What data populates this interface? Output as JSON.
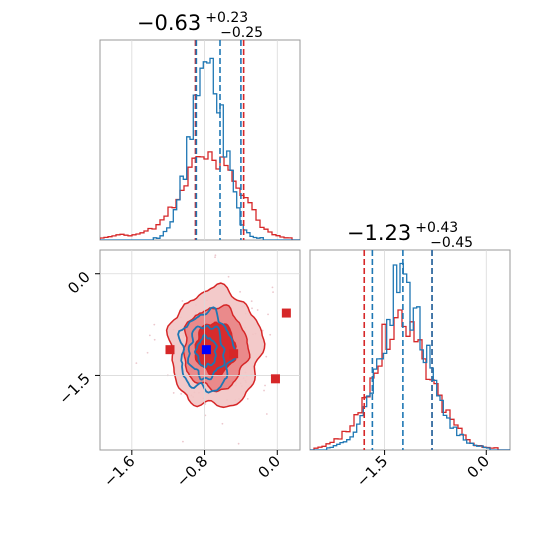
{
  "chart_data": {
    "type": "corner",
    "parameters": [
      {
        "title_value": "−0.63",
        "title_plus": "+0.23",
        "title_minus": "−0.25",
        "range": [
          -1.95,
          0.25
        ],
        "ticks": [
          -1.6,
          -0.8,
          0.0
        ],
        "tick_labels": [
          "−1.6",
          "−0.8",
          "0.0"
        ],
        "blue_hist": {
          "x": [
            -1.3,
            -1.2,
            -1.1,
            -1.0,
            -0.95,
            -0.9,
            -0.85,
            -0.8,
            -0.75,
            -0.7,
            -0.65,
            -0.6,
            -0.55,
            -0.5,
            -0.45,
            -0.4,
            -0.35,
            -0.3,
            -0.2
          ],
          "y": [
            0.01,
            0.05,
            0.15,
            0.4,
            0.62,
            0.78,
            0.88,
            0.93,
            0.86,
            0.78,
            0.7,
            0.6,
            0.46,
            0.32,
            0.2,
            0.1,
            0.05,
            0.02,
            0.01
          ]
        },
        "red_hist": {
          "x": [
            -1.9,
            -1.8,
            -1.7,
            -1.6,
            -1.5,
            -1.4,
            -1.3,
            -1.2,
            -1.1,
            -1.0,
            -0.9,
            -0.8,
            -0.7,
            -0.6,
            -0.5,
            -0.4,
            -0.3,
            -0.2,
            -0.1,
            0.0,
            0.1
          ],
          "y": [
            0.01,
            0.02,
            0.03,
            0.02,
            0.04,
            0.05,
            0.08,
            0.13,
            0.2,
            0.32,
            0.4,
            0.4,
            0.38,
            0.41,
            0.36,
            0.27,
            0.16,
            0.09,
            0.04,
            0.02,
            0.01
          ]
        },
        "blue_quantiles": [
          -0.89,
          -0.63,
          -0.4
        ],
        "red_quantiles": [
          -0.9,
          -0.37
        ]
      },
      {
        "title_value": "−1.23",
        "title_plus": "+0.43",
        "title_minus": "−0.45",
        "range": [
          -2.6,
          0.35
        ],
        "ticks": [
          -1.5,
          0.0
        ],
        "tick_labels": [
          "−1.5",
          "0.0"
        ],
        "blue_hist": {
          "x": [
            -2.3,
            -2.1,
            -1.9,
            -1.75,
            -1.6,
            -1.5,
            -1.4,
            -1.3,
            -1.2,
            -1.1,
            -1.0,
            -0.9,
            -0.8,
            -0.7,
            -0.6,
            -0.5,
            -0.4,
            -0.3,
            -0.2,
            -0.1,
            0.0
          ],
          "y": [
            0.01,
            0.04,
            0.1,
            0.22,
            0.4,
            0.58,
            0.72,
            0.82,
            0.8,
            0.7,
            0.62,
            0.5,
            0.38,
            0.26,
            0.18,
            0.12,
            0.08,
            0.05,
            0.03,
            0.02,
            0.01
          ]
        },
        "red_hist": {
          "x": [
            -2.5,
            -2.3,
            -2.1,
            -1.9,
            -1.75,
            -1.6,
            -1.5,
            -1.4,
            -1.3,
            -1.2,
            -1.1,
            -1.0,
            -0.9,
            -0.8,
            -0.7,
            -0.6,
            -0.5,
            -0.4,
            -0.3,
            -0.2,
            -0.1,
            0.1
          ],
          "y": [
            0.01,
            0.03,
            0.08,
            0.16,
            0.28,
            0.42,
            0.55,
            0.64,
            0.68,
            0.66,
            0.6,
            0.54,
            0.46,
            0.36,
            0.27,
            0.2,
            0.14,
            0.1,
            0.06,
            0.03,
            0.02,
            0.01
          ]
        },
        "blue_quantiles": [
          -1.68,
          -1.23,
          -0.8
        ],
        "red_quantiles": [
          -1.8,
          -0.8
        ]
      }
    ],
    "joint_2d": {
      "blue": {
        "center": [
          -0.78,
          -1.15
        ],
        "sigma": [
          0.12,
          0.24
        ],
        "rho": 0.0,
        "levels": [
          0.95,
          0.75,
          0.45
        ]
      },
      "red": {
        "center": [
          -0.68,
          -1.1
        ],
        "sigma": [
          0.22,
          0.38
        ],
        "rho": 0.0,
        "levels": [
          0.9,
          0.6,
          0.3
        ]
      },
      "markers_red": [
        [
          -1.18,
          -1.12
        ],
        [
          -0.02,
          -1.55
        ],
        [
          0.1,
          -0.58
        ],
        [
          -0.48,
          -1.18
        ]
      ],
      "marker_blue": [
        -0.78,
        -1.12
      ]
    },
    "colors": {
      "blue": "#1f77b4",
      "red": "#d62728"
    },
    "grid": true
  }
}
